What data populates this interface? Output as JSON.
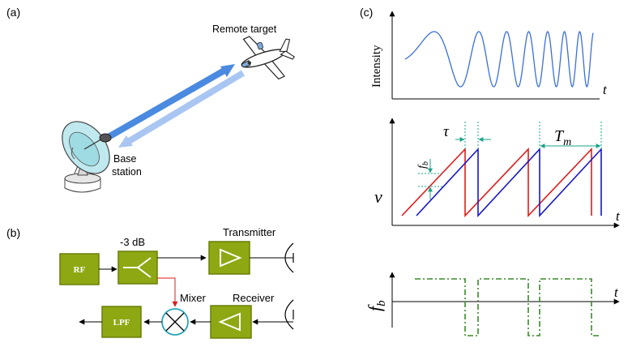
{
  "panels": {
    "a": {
      "label": "(a)",
      "remote_target": "Remote target",
      "base_station_line1": "Base",
      "base_station_line2": "station"
    },
    "b": {
      "label": "(b)",
      "rf": "RF",
      "splitter_label": "-3 dB",
      "transmitter": "Transmitter",
      "mixer": "Mixer",
      "receiver": "Receiver",
      "lpf": "LPF"
    },
    "c": {
      "label": "(c)",
      "top": {
        "ylabel": "Intensity",
        "xlabel": "t"
      },
      "middle": {
        "ylabel": "ν",
        "xlabel": "t",
        "tau": "τ",
        "tm_main": "T",
        "tm_sub": "m",
        "fb_main": "f",
        "fb_sub": "b"
      },
      "bottom": {
        "ylabel_main": "f",
        "ylabel_sub": "b",
        "xlabel": "t"
      }
    }
  },
  "colors": {
    "block_fill": "#8da812",
    "block_stroke": "#6a7f0a",
    "beam_out": "#4a8ae0",
    "beam_in": "#a9c6f2",
    "chirp": "#3a6fd8",
    "ramp_tx": "#e01b1b",
    "ramp_rx": "#1616c8",
    "annot": "#1aa58a",
    "fb_trace": "#3a8a2a",
    "mixer_circle": "#2aa3b8",
    "rf_tap": "#e01b1b"
  }
}
